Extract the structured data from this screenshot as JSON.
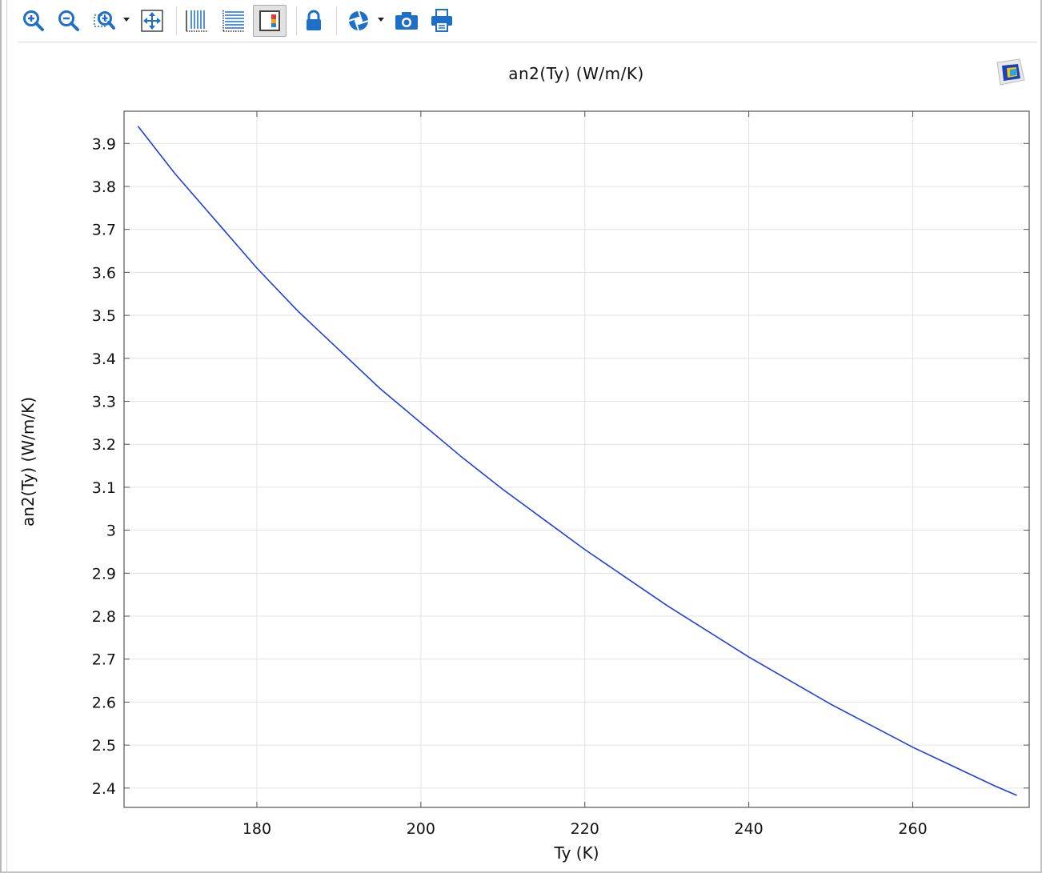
{
  "toolbar": {
    "buttons": [
      {
        "name": "zoom-in",
        "icon": "zoom-in-icon"
      },
      {
        "name": "zoom-out",
        "icon": "zoom-out-icon"
      },
      {
        "name": "zoom-box",
        "icon": "zoom-box-icon"
      },
      {
        "name": "zoom-extents",
        "icon": "zoom-extents-icon"
      },
      {
        "name": "x-grid",
        "icon": "vertical-grid-icon"
      },
      {
        "name": "y-grid",
        "icon": "horizontal-grid-icon"
      },
      {
        "name": "legend-toggle",
        "icon": "color-legend-icon"
      },
      {
        "name": "lock-axis",
        "icon": "lock-icon"
      },
      {
        "name": "scene-light",
        "icon": "aperture-icon"
      },
      {
        "name": "image-snapshot",
        "icon": "camera-icon"
      },
      {
        "name": "print",
        "icon": "printer-icon"
      }
    ],
    "accent_color": "#1e6fc8"
  },
  "chart_data": {
    "type": "line",
    "title": "an2(Ty) (W/m/K)",
    "xlabel": "Ty (K)",
    "ylabel": "an2(Ty) (W/m/K)",
    "xlim": [
      163.8,
      274.2
    ],
    "ylim": [
      2.355,
      3.975
    ],
    "xticks": [
      180,
      200,
      220,
      240,
      260
    ],
    "yticks": [
      2.4,
      2.5,
      2.6,
      2.7,
      2.8,
      2.9,
      3,
      3.1,
      3.2,
      3.3,
      3.4,
      3.5,
      3.6,
      3.7,
      3.8,
      3.9
    ],
    "ytick_labels": [
      "2.4",
      "2.5",
      "2.6",
      "2.7",
      "2.8",
      "2.9",
      "3",
      "3.1",
      "3.2",
      "3.3",
      "3.4",
      "3.5",
      "3.6",
      "3.7",
      "3.8",
      "3.9"
    ],
    "xtick_labels": [
      "180",
      "200",
      "220",
      "240",
      "260"
    ],
    "grid": true,
    "series": [
      {
        "color": "#1f3fe0",
        "x": [
          165.5,
          170,
          175,
          180,
          185,
          190,
          195,
          200,
          205,
          210,
          215,
          220,
          225,
          230,
          235,
          240,
          245,
          250,
          255,
          260,
          265,
          270,
          272.7
        ],
        "y": [
          3.94,
          3.83,
          3.72,
          3.61,
          3.51,
          3.42,
          3.33,
          3.25,
          3.17,
          3.095,
          3.025,
          2.955,
          2.89,
          2.825,
          2.765,
          2.705,
          2.65,
          2.595,
          2.545,
          2.495,
          2.45,
          2.405,
          2.383
        ]
      }
    ]
  }
}
